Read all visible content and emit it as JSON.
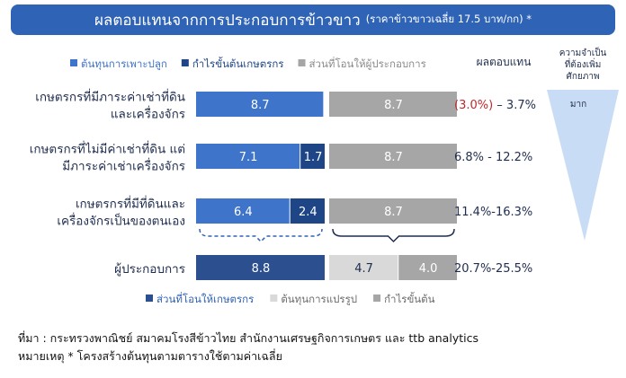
{
  "title": {
    "main": "ผลตอบแทนจากการประกอบการข้าวขาว",
    "sub": "(ราคาข้าวขาวเฉลี่ย 17.5 บาท/กก) *"
  },
  "chart_data": {
    "type": "bar",
    "orientation": "horizontal",
    "stacked": true,
    "categories": [
      [
        "เกษตรกรที่มีภาระค่าเช่าที่ดิน",
        "และเครื่องจักร"
      ],
      [
        "เกษตรกรที่ไม่มีค่าเช่าที่ดิน แต่",
        "มีภาระค่าเช่าเครื่องจักร"
      ],
      [
        "เกษตรกรที่มีที่ดินและ",
        "เครื่องจักรเป็นของตนเอง"
      ],
      [
        "ผู้ประกอบการ"
      ]
    ],
    "top_legend": [
      {
        "label": "ต้นทุนการเพาะปลูก",
        "color": "#3e74c9"
      },
      {
        "label": "กำไรขั้นต้นเกษตรกร",
        "color": "#1e4686"
      },
      {
        "label": "ส่วนที่โอนให้ผู้ประกอบการ",
        "color": "#a6a6a6"
      }
    ],
    "bottom_legend": [
      {
        "label": "ส่วนที่โอนให้เกษตรกร",
        "color": "#2c4f8f"
      },
      {
        "label": "ต้นทุนการแปรรูป",
        "color": "#d9d9d9"
      },
      {
        "label": "กำไรขั้นต้น",
        "color": "#a6a6a6"
      }
    ],
    "rows": [
      {
        "segments": [
          {
            "value": 8.7,
            "color": "#3e74c9",
            "text": "#ffffff",
            "group": "left"
          },
          {
            "value": 8.7,
            "color": "#a6a6a6",
            "text": "#ffffff",
            "group": "right"
          }
        ],
        "ret": {
          "neg": "(3.0%)",
          "rest": " – 3.7%"
        }
      },
      {
        "segments": [
          {
            "value": 7.1,
            "color": "#3e74c9",
            "text": "#ffffff",
            "group": "left"
          },
          {
            "value": 1.7,
            "color": "#1e4686",
            "text": "#ffffff",
            "group": "left"
          },
          {
            "value": 8.7,
            "color": "#a6a6a6",
            "text": "#ffffff",
            "group": "right"
          }
        ],
        "ret": {
          "neg": "",
          "rest": "6.8% - 12.2%"
        }
      },
      {
        "segments": [
          {
            "value": 6.4,
            "color": "#3e74c9",
            "text": "#ffffff",
            "group": "left"
          },
          {
            "value": 2.4,
            "color": "#1e4686",
            "text": "#ffffff",
            "group": "left"
          },
          {
            "value": 8.7,
            "color": "#a6a6a6",
            "text": "#ffffff",
            "group": "right"
          }
        ],
        "ret": {
          "neg": "",
          "rest": "11.4%-16.3%"
        }
      },
      {
        "segments": [
          {
            "value": 8.8,
            "color": "#2c4f8f",
            "text": "#ffffff",
            "group": "left"
          },
          {
            "value": 4.7,
            "color": "#d9d9d9",
            "text": "#1f2d4e",
            "group": "right"
          },
          {
            "value": 4.0,
            "color": "#a6a6a6",
            "text": "#ffffff",
            "group": "right"
          }
        ],
        "ret": {
          "neg": "",
          "rest": "20.7%-25.5%"
        }
      }
    ],
    "return_header": "ผลตอบแทน",
    "need_header": [
      "ความจำเป็น",
      "ที่ต้องเพิ่ม",
      "ศักยภาพ"
    ],
    "need_label": "มาก",
    "colors": {
      "negative": "#c0272d",
      "text": "#1f2d4e",
      "wedge": "#c9dcf5",
      "bracket": "#2f63b6"
    }
  },
  "footer": {
    "source": "ที่มา : กระทรวงพาณิชย์ สมาคมโรงสีข้าวไทย สำนักงานเศรษฐกิจการเกษตร และ ttb analytics",
    "note": "หมายเหตุ * โครงสร้างต้นทุนตามตารางใช้ตามค่าเฉลี่ย"
  }
}
